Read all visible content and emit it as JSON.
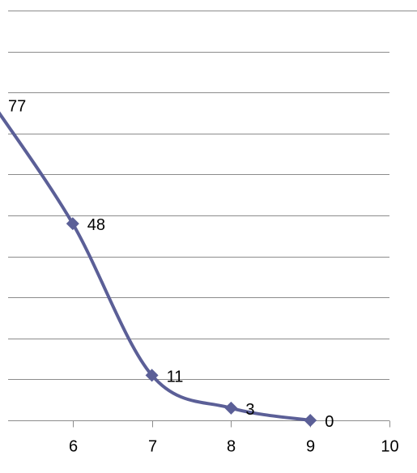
{
  "chart_data": {
    "type": "line",
    "title": "",
    "xlabel": "",
    "ylabel": "",
    "series": [
      {
        "color": "#5b5f97",
        "marker": "diamond",
        "smooth": true,
        "points": [
          {
            "x": 5,
            "y": 77,
            "label": "77"
          },
          {
            "x": 6,
            "y": 48,
            "label": "48"
          },
          {
            "x": 7,
            "y": 11,
            "label": "11"
          },
          {
            "x": 8,
            "y": 3,
            "label": "3"
          },
          {
            "x": 9,
            "y": 0,
            "label": "0"
          }
        ]
      }
    ],
    "xlim": [
      5,
      10
    ],
    "xticks": [
      "6",
      "7",
      "8",
      "9",
      "10"
    ],
    "ylim": [
      0,
      100
    ],
    "ygrid_step": 10,
    "grid": true,
    "legend": "none"
  }
}
